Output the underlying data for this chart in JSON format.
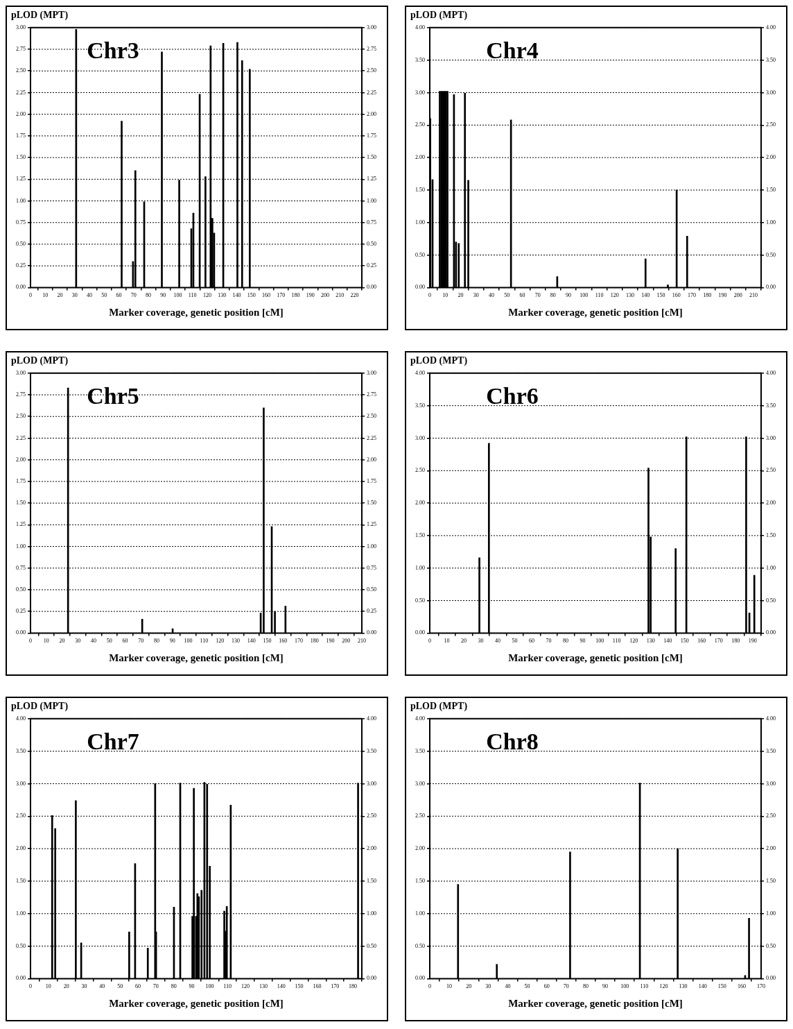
{
  "chart_data": [
    {
      "type": "bar",
      "ylabel": "pLOD (MPT)",
      "xlabel": "Marker coverage, genetic position [cM]",
      "annotations": [
        "Chr3"
      ],
      "grid": "y",
      "color": "#000000",
      "x": [
        31,
        61.9,
        69.6,
        71.2,
        77.2,
        89.2,
        101,
        109.2,
        110.6,
        114.9,
        118.8,
        122.3,
        123.5,
        124.7,
        130.9,
        140.5,
        143.7,
        148.9
      ],
      "values": [
        2.98,
        1.92,
        0.3,
        1.35,
        0.99,
        2.72,
        1.24,
        0.68,
        0.86,
        2.23,
        1.28,
        2.79,
        0.8,
        0.63,
        2.82,
        2.83,
        2.62,
        2.52
      ],
      "xlim": [
        0,
        225
      ],
      "xticks": [
        0,
        10,
        20,
        30,
        40,
        50,
        60,
        70,
        80,
        90,
        100,
        110,
        120,
        130,
        140,
        150,
        160,
        170,
        180,
        190,
        200,
        210,
        220
      ],
      "ylim": [
        0,
        3
      ],
      "yticks": [
        {
          "value": 0,
          "label": "0.00"
        },
        {
          "value": 0.25,
          "label": "0.25"
        },
        {
          "value": 0.5,
          "label": "0.50"
        },
        {
          "value": 0.75,
          "label": "0.75"
        },
        {
          "value": 1,
          "label": "1.00"
        },
        {
          "value": 1.25,
          "label": "1.25"
        },
        {
          "value": 1.5,
          "label": "1.50"
        },
        {
          "value": 1.75,
          "label": "1.75"
        },
        {
          "value": 2,
          "label": "2.00"
        },
        {
          "value": 2.25,
          "label": "2.25"
        },
        {
          "value": 2.5,
          "label": "2.50"
        },
        {
          "value": 2.75,
          "label": "2.75"
        },
        {
          "value": 3,
          "label": "3.00"
        }
      ],
      "y2lim": [
        0,
        3
      ],
      "y2ticks": [
        {
          "value": 0,
          "label": "0.00"
        },
        {
          "value": 0.25,
          "label": "0.25"
        },
        {
          "value": 0.5,
          "label": "0.50"
        },
        {
          "value": 0.75,
          "label": "0.75"
        },
        {
          "value": 1,
          "label": "1.00"
        },
        {
          "value": 1.25,
          "label": "1.25"
        },
        {
          "value": 1.5,
          "label": "1.50"
        },
        {
          "value": 1.75,
          "label": "1.75"
        },
        {
          "value": 2,
          "label": "2.00"
        },
        {
          "value": 2.25,
          "label": "2.25"
        },
        {
          "value": 2.5,
          "label": "2.50"
        },
        {
          "value": 2.75,
          "label": "2.75"
        },
        {
          "value": 3,
          "label": "3.00"
        }
      ]
    },
    {
      "type": "bar",
      "ylabel": "pLOD (MPT)",
      "xlabel": "Marker coverage, genetic position [cM]",
      "annotations": [
        "Chr4"
      ],
      "grid": "y",
      "color": "#000000",
      "x": [
        0.3,
        1.8,
        6.5,
        7.5,
        8.5,
        9.5,
        10.5,
        11.5,
        15.7,
        17,
        18.8,
        22.8,
        25,
        52.7,
        82.7,
        140,
        154.5,
        160.2,
        167
      ],
      "values": [
        2.6,
        1.66,
        3.02,
        3.02,
        3.02,
        3.02,
        3.02,
        3.02,
        2.97,
        0.7,
        0.68,
        2.99,
        1.65,
        2.58,
        0.17,
        0.44,
        0.04,
        1.5,
        0.79
      ],
      "xlim": [
        0,
        215
      ],
      "xticks": [
        0,
        10,
        20,
        30,
        40,
        50,
        60,
        70,
        80,
        90,
        100,
        110,
        120,
        130,
        140,
        150,
        160,
        170,
        180,
        190,
        200,
        210
      ],
      "ylim": [
        0,
        4
      ],
      "yticks": [
        {
          "value": 0,
          "label": "0.00"
        },
        {
          "value": 0.5,
          "label": "0.50"
        },
        {
          "value": 1,
          "label": "1.00"
        },
        {
          "value": 1.5,
          "label": "1.50"
        },
        {
          "value": 2,
          "label": "2.00"
        },
        {
          "value": 2.5,
          "label": "2.50"
        },
        {
          "value": 3,
          "label": "3.00"
        },
        {
          "value": 3.5,
          "label": "3.50"
        },
        {
          "value": 4,
          "label": "4.00"
        }
      ],
      "y2lim": [
        0,
        4
      ],
      "y2ticks": [
        {
          "value": 0,
          "label": "0.00"
        },
        {
          "value": 0.5,
          "label": "0.50"
        },
        {
          "value": 1,
          "label": "1.00"
        },
        {
          "value": 1.5,
          "label": "1.50"
        },
        {
          "value": 2,
          "label": "2.00"
        },
        {
          "value": 2.5,
          "label": "2.50"
        },
        {
          "value": 3,
          "label": "3.00"
        },
        {
          "value": 3.5,
          "label": "3.50"
        },
        {
          "value": 4,
          "label": "4.00"
        }
      ]
    },
    {
      "type": "bar",
      "ylabel": "pLOD (MPT)",
      "xlabel": "Marker coverage, genetic position [cM]",
      "annotations": [
        "Chr5"
      ],
      "grid": "y",
      "color": "#000000",
      "x": [
        23.8,
        70.8,
        90.1,
        145.9,
        147.8,
        152.9,
        154.9,
        161.6
      ],
      "values": [
        2.83,
        0.16,
        0.05,
        0.23,
        2.6,
        1.23,
        0.25,
        0.31
      ],
      "xlim": [
        0,
        210
      ],
      "xticks": [
        0,
        10,
        20,
        30,
        40,
        50,
        60,
        70,
        80,
        90,
        100,
        110,
        120,
        130,
        140,
        150,
        160,
        170,
        180,
        190,
        200,
        210
      ],
      "ylim": [
        0,
        3
      ],
      "yticks": [
        {
          "value": 0,
          "label": "0.00"
        },
        {
          "value": 0.25,
          "label": "0.25"
        },
        {
          "value": 0.5,
          "label": "0.50"
        },
        {
          "value": 0.75,
          "label": "0.75"
        },
        {
          "value": 1,
          "label": "1.00"
        },
        {
          "value": 1.25,
          "label": "1.25"
        },
        {
          "value": 1.5,
          "label": "1.50"
        },
        {
          "value": 1.75,
          "label": "1.75"
        },
        {
          "value": 2,
          "label": "2.00"
        },
        {
          "value": 2.25,
          "label": "2.25"
        },
        {
          "value": 2.5,
          "label": "2.50"
        },
        {
          "value": 2.75,
          "label": "2.75"
        },
        {
          "value": 3,
          "label": "3.00"
        }
      ],
      "y2lim": [
        0,
        3
      ],
      "y2ticks": [
        {
          "value": 0,
          "label": "0.00"
        },
        {
          "value": 0.25,
          "label": "0.25"
        },
        {
          "value": 0.5,
          "label": "0.50"
        },
        {
          "value": 0.75,
          "label": "0.75"
        },
        {
          "value": 1,
          "label": "1.00"
        },
        {
          "value": 1.25,
          "label": "1.25"
        },
        {
          "value": 1.5,
          "label": "1.50"
        },
        {
          "value": 1.75,
          "label": "1.75"
        },
        {
          "value": 2,
          "label": "2.00"
        },
        {
          "value": 2.25,
          "label": "2.25"
        },
        {
          "value": 2.5,
          "label": "2.50"
        },
        {
          "value": 2.75,
          "label": "2.75"
        },
        {
          "value": 3,
          "label": "3.00"
        }
      ]
    },
    {
      "type": "bar",
      "ylabel": "pLOD (MPT)",
      "xlabel": "Marker coverage, genetic position [cM]",
      "annotations": [
        "Chr6"
      ],
      "grid": "y",
      "color": "#000000",
      "x": [
        29.2,
        34.8,
        128.7,
        130,
        144.7,
        151,
        185.6,
        186.2,
        188.1,
        191
      ],
      "values": [
        1.16,
        2.92,
        2.54,
        1.48,
        1.3,
        3.02,
        null,
        3.02,
        0.31,
        0.89
      ],
      "xlim": [
        0,
        195
      ],
      "xticks": [
        0,
        10,
        20,
        30,
        40,
        50,
        60,
        70,
        80,
        90,
        100,
        110,
        120,
        130,
        140,
        150,
        160,
        170,
        180,
        190
      ],
      "ylim": [
        0,
        4
      ],
      "yticks": [
        {
          "value": 0,
          "label": "0.00"
        },
        {
          "value": 0.5,
          "label": "0.50"
        },
        {
          "value": 1,
          "label": "1.00"
        },
        {
          "value": 1.5,
          "label": "1.50"
        },
        {
          "value": 2,
          "label": "2.00"
        },
        {
          "value": 2.5,
          "label": "2.50"
        },
        {
          "value": 3,
          "label": "3.00"
        },
        {
          "value": 3.5,
          "label": "3.50"
        },
        {
          "value": 4,
          "label": "4.00"
        }
      ],
      "y2lim": [
        0,
        4
      ],
      "y2ticks": [
        {
          "value": 0,
          "label": "0.00"
        },
        {
          "value": 0.5,
          "label": "0.50"
        },
        {
          "value": 1,
          "label": "1.00"
        },
        {
          "value": 1.5,
          "label": "1.50"
        },
        {
          "value": 2,
          "label": "2.00"
        },
        {
          "value": 2.5,
          "label": "2.50"
        },
        {
          "value": 3,
          "label": "3.00"
        },
        {
          "value": 3.5,
          "label": "3.50"
        },
        {
          "value": 4,
          "label": "4.00"
        }
      ]
    },
    {
      "type": "bar",
      "ylabel": "pLOD (MPT)",
      "xlabel": "Marker coverage, genetic position [cM]",
      "annotations": [
        "Chr7"
      ],
      "grid": "y",
      "color": "#000000",
      "x": [
        12.1,
        13.8,
        25.3,
        28.3,
        55.1,
        58.4,
        65.5,
        69.6,
        70.1,
        80.1,
        83.6,
        90.4,
        91.2,
        92.4,
        93.2,
        94,
        95.5,
        97.1,
        98.6,
        99.7,
        100.1,
        107.8,
        108.2,
        109,
        109.6,
        111.8,
        182.9
      ],
      "values": [
        2.51,
        2.31,
        2.74,
        0.55,
        0.72,
        1.77,
        0.47,
        3,
        0.72,
        1.1,
        3.01,
        0.96,
        2.93,
        0.96,
        1.31,
        1.26,
        1.36,
        3.02,
        2.99,
        null,
        1.73,
        null,
        1.04,
        0.73,
        1.11,
        2.67,
        3.01
      ],
      "xlim": [
        0,
        185
      ],
      "xticks": [
        0,
        10,
        20,
        30,
        40,
        50,
        60,
        70,
        80,
        90,
        100,
        110,
        120,
        130,
        140,
        150,
        160,
        170,
        180
      ],
      "ylim": [
        0,
        4
      ],
      "yticks": [
        {
          "value": 0,
          "label": "0.00"
        },
        {
          "value": 0.5,
          "label": "0.50"
        },
        {
          "value": 1,
          "label": "1.00"
        },
        {
          "value": 1.5,
          "label": "1.50"
        },
        {
          "value": 2,
          "label": "2.00"
        },
        {
          "value": 2.5,
          "label": "2.50"
        },
        {
          "value": 3,
          "label": "3.00"
        },
        {
          "value": 3.5,
          "label": "3.50"
        },
        {
          "value": 4,
          "label": "4.00"
        }
      ],
      "y2lim": [
        0,
        4
      ],
      "y2ticks": [
        {
          "value": 0,
          "label": "0.00"
        },
        {
          "value": 0.5,
          "label": "0.50"
        },
        {
          "value": 1,
          "label": "1.00"
        },
        {
          "value": 1.5,
          "label": "1.50"
        },
        {
          "value": 2,
          "label": "2.00"
        },
        {
          "value": 2.5,
          "label": "2.50"
        },
        {
          "value": 3,
          "label": "3.00"
        },
        {
          "value": 3.5,
          "label": "3.50"
        },
        {
          "value": 4,
          "label": "4.00"
        }
      ]
    },
    {
      "type": "bar",
      "ylabel": "pLOD (MPT)",
      "xlabel": "Marker coverage, genetic position [cM]",
      "annotations": [
        "Chr8"
      ],
      "grid": "y",
      "color": "#000000",
      "x": [
        14.5,
        34.4,
        72,
        107.8,
        127.2,
        161.8,
        163.8
      ],
      "values": [
        1.45,
        0.22,
        1.95,
        3.01,
        2,
        0.05,
        0.93
      ],
      "xlim": [
        0,
        170
      ],
      "xticks": [
        0,
        10,
        20,
        30,
        40,
        50,
        60,
        70,
        80,
        90,
        100,
        110,
        120,
        130,
        140,
        150,
        160,
        170
      ],
      "ylim": [
        0,
        4
      ],
      "yticks": [
        {
          "value": 0,
          "label": "0.00"
        },
        {
          "value": 0.5,
          "label": "0.50"
        },
        {
          "value": 1,
          "label": "1.00"
        },
        {
          "value": 1.5,
          "label": "1.50"
        },
        {
          "value": 2,
          "label": "2.00"
        },
        {
          "value": 2.5,
          "label": "2.50"
        },
        {
          "value": 3,
          "label": "3.00"
        },
        {
          "value": 3.5,
          "label": "3.50"
        },
        {
          "value": 4,
          "label": "4.00"
        }
      ],
      "y2lim": [
        0,
        4
      ],
      "y2ticks": [
        {
          "value": 0,
          "label": "0.00"
        },
        {
          "value": 0.5,
          "label": "0.50"
        },
        {
          "value": 1,
          "label": "1.00"
        },
        {
          "value": 1.5,
          "label": "1.50"
        },
        {
          "value": 2,
          "label": "2.00"
        },
        {
          "value": 2.5,
          "label": "2.50"
        },
        {
          "value": 3,
          "label": "3.00"
        },
        {
          "value": 3.5,
          "label": "3.50"
        },
        {
          "value": 4,
          "label": "4.00"
        }
      ]
    }
  ]
}
